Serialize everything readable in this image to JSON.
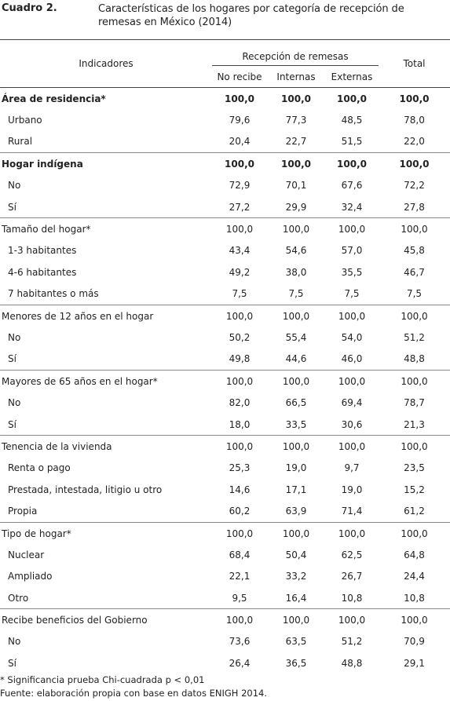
{
  "header": {
    "label": "Cuadro 2.",
    "title": "Características de los hogares por categoría de recepción de remesas en México (2014)"
  },
  "table": {
    "columns": {
      "indicators": "Indicadores",
      "group": "Recepción de remesas",
      "sub": [
        "No recibe",
        "Internas",
        "Externas"
      ],
      "total": "Total"
    },
    "sections": [
      {
        "label": "Área de residencia*",
        "values": [
          "100,0",
          "100,0",
          "100,0",
          "100,0"
        ],
        "rows": [
          {
            "label": "Urbano",
            "values": [
              "79,6",
              "77,3",
              "48,5",
              "78,0"
            ]
          },
          {
            "label": "Rural",
            "values": [
              "20,4",
              "22,7",
              "51,5",
              "22,0"
            ]
          }
        ]
      },
      {
        "label": "Hogar indígena",
        "values": [
          "100,0",
          "100,0",
          "100,0",
          "100,0"
        ],
        "rows": [
          {
            "label": "No",
            "values": [
              "72,9",
              "70,1",
              "67,6",
              "72,2"
            ]
          },
          {
            "label": "Sí",
            "values": [
              "27,2",
              "29,9",
              "32,4",
              "27,8"
            ]
          }
        ]
      },
      {
        "label": "Tamaño del hogar*",
        "values": [
          "100,0",
          "100,0",
          "100,0",
          "100,0"
        ],
        "rows": [
          {
            "label": "1-3 habitantes",
            "values": [
              "43,4",
              "54,6",
              "57,0",
              "45,8"
            ]
          },
          {
            "label": "4-6 habitantes",
            "values": [
              "49,2",
              "38,0",
              "35,5",
              "46,7"
            ]
          },
          {
            "label": "7 habitantes o más",
            "values": [
              "7,5",
              "7,5",
              "7,5",
              "7,5"
            ]
          }
        ]
      },
      {
        "label": "Menores de 12 años en el hogar",
        "values": [
          "100,0",
          "100,0",
          "100,0",
          "100,0"
        ],
        "rows": [
          {
            "label": "No",
            "values": [
              "50,2",
              "55,4",
              "54,0",
              "51,2"
            ]
          },
          {
            "label": "Sí",
            "values": [
              "49,8",
              "44,6",
              "46,0",
              "48,8"
            ]
          }
        ]
      },
      {
        "label": "Mayores de 65 años en el hogar*",
        "values": [
          "100,0",
          "100,0",
          "100,0",
          "100,0"
        ],
        "rows": [
          {
            "label": "No",
            "values": [
              "82,0",
              "66,5",
              "69,4",
              "78,7"
            ]
          },
          {
            "label": "Sí",
            "values": [
              "18,0",
              "33,5",
              "30,6",
              "21,3"
            ]
          }
        ]
      },
      {
        "label": "Tenencia de la vivienda",
        "values": [
          "100,0",
          "100,0",
          "100,0",
          "100,0"
        ],
        "rows": [
          {
            "label": "Renta o pago",
            "values": [
              "25,3",
              "19,0",
              "9,7",
              "23,5"
            ]
          },
          {
            "label": "Prestada, intestada, litigio u otro",
            "values": [
              "14,6",
              "17,1",
              "19,0",
              "15,2"
            ]
          },
          {
            "label": "Propia",
            "values": [
              "60,2",
              "63,9",
              "71,4",
              "61,2"
            ]
          }
        ]
      },
      {
        "label": "Tipo de hogar*",
        "values": [
          "100,0",
          "100,0",
          "100,0",
          "100,0"
        ],
        "rows": [
          {
            "label": "Nuclear",
            "values": [
              "68,4",
              "50,4",
              "62,5",
              "64,8"
            ]
          },
          {
            "label": "Ampliado",
            "values": [
              "22,1",
              "33,2",
              "26,7",
              "24,4"
            ]
          },
          {
            "label": "Otro",
            "values": [
              "9,5",
              "16,4",
              "10,8",
              "10,8"
            ]
          }
        ]
      },
      {
        "label": "Recibe beneficios del Gobierno",
        "values": [
          "100,0",
          "100,0",
          "100,0",
          "100,0"
        ],
        "rows": [
          {
            "label": "No",
            "values": [
              "73,6",
              "63,5",
              "51,2",
              "70,9"
            ]
          },
          {
            "label": "Sí",
            "values": [
              "26,4",
              "36,5",
              "48,8",
              "29,1"
            ]
          }
        ]
      }
    ]
  },
  "notes": [
    "* Significancia prueba Chi-cuadrada p < 0,01",
    "Fuente: elaboración propia con base en datos ENIGH 2014."
  ]
}
